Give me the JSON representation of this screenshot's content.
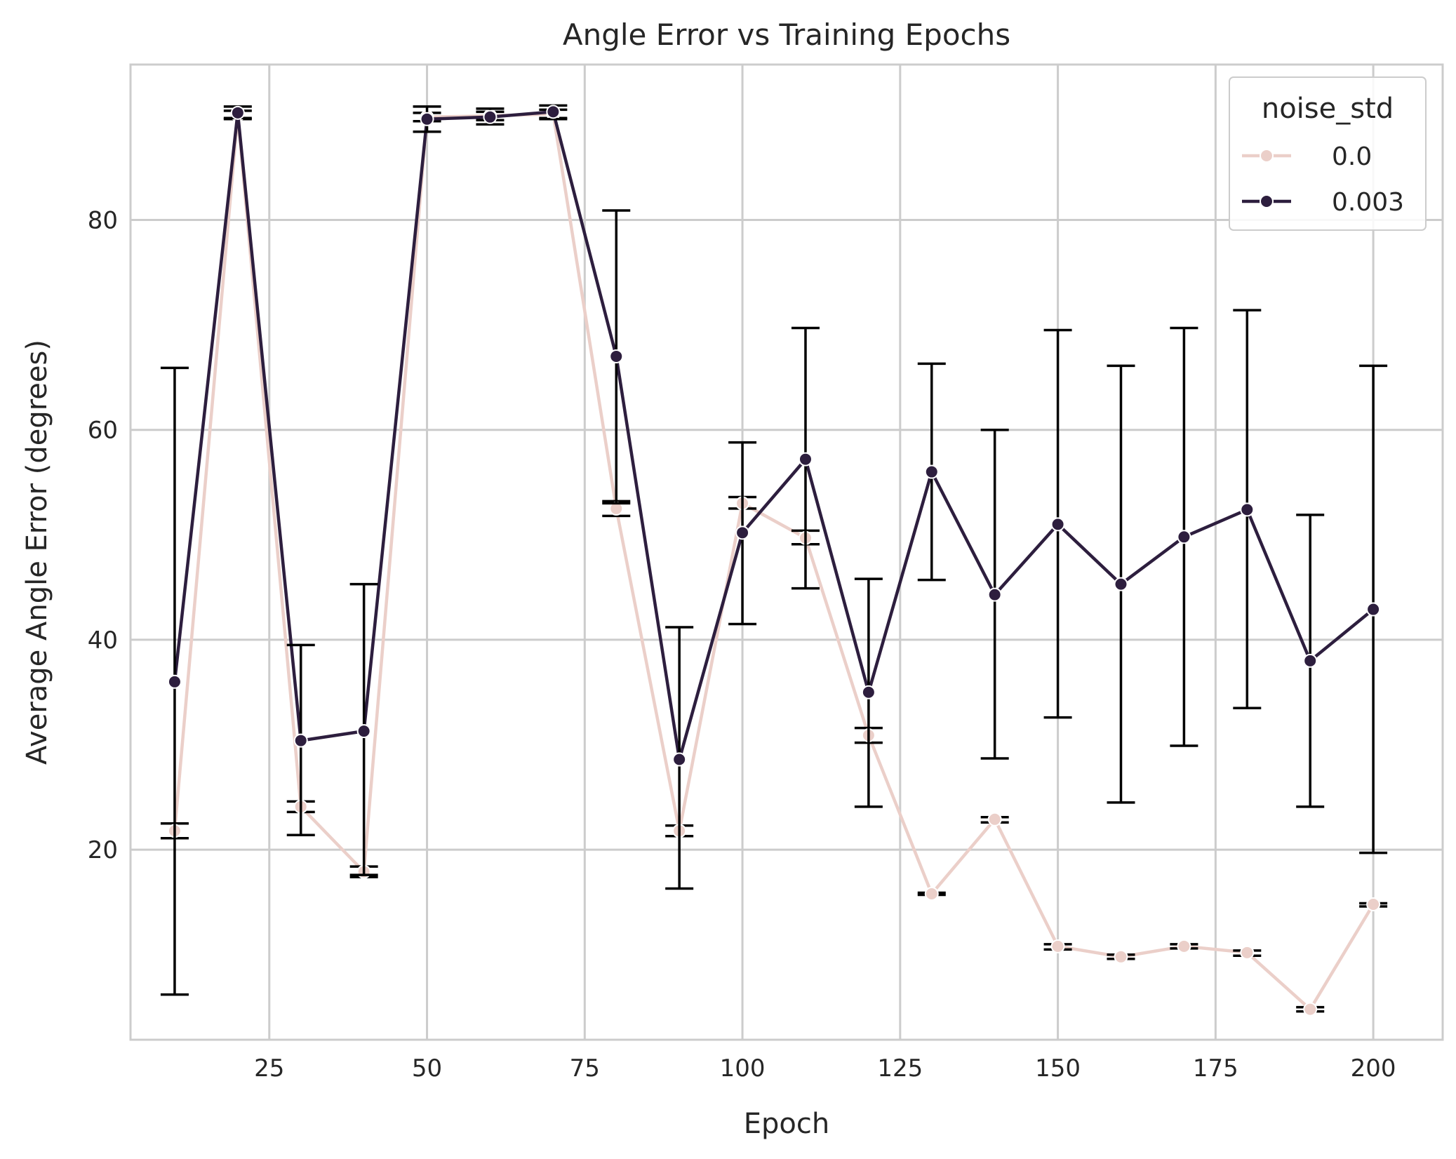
{
  "chart_data": {
    "type": "line",
    "title": "Angle Error vs Training Epochs",
    "xlabel": "Epoch",
    "ylabel": "Average Angle Error (degrees)",
    "xlim": [
      3,
      211
    ],
    "ylim": [
      1.9,
      94.8
    ],
    "xticks": [
      25,
      50,
      75,
      100,
      125,
      150,
      175,
      200
    ],
    "yticks": [
      20,
      40,
      60,
      80
    ],
    "grid": true,
    "legend": {
      "title": "noise_std",
      "placement": "top-right"
    },
    "x": [
      10,
      20,
      30,
      40,
      50,
      60,
      70,
      80,
      90,
      100,
      110,
      120,
      130,
      140,
      150,
      160,
      170,
      180,
      190,
      200
    ],
    "series": [
      {
        "name": "0.0",
        "color": "#ebcfc9",
        "values": [
          21.8,
          90.0,
          24.1,
          17.9,
          89.8,
          89.9,
          90.1,
          52.5,
          21.8,
          53.0,
          49.7,
          30.9,
          15.8,
          22.9,
          10.8,
          9.8,
          10.8,
          10.2,
          4.8,
          14.8
        ],
        "err_low": [
          21.1,
          89.6,
          23.6,
          17.4,
          89.4,
          89.5,
          89.7,
          51.8,
          21.3,
          52.5,
          49.1,
          30.2,
          15.7,
          22.6,
          10.5,
          9.6,
          10.6,
          9.9,
          4.6,
          14.6
        ],
        "err_high": [
          22.5,
          90.4,
          24.6,
          18.4,
          90.2,
          90.3,
          90.5,
          53.2,
          22.3,
          53.6,
          50.4,
          31.6,
          15.9,
          23.1,
          11.0,
          10.0,
          11.0,
          10.4,
          5.0,
          14.9
        ]
      },
      {
        "name": "0.003",
        "color": "#2d1e3e",
        "values": [
          36.0,
          90.2,
          30.4,
          31.3,
          89.6,
          89.8,
          90.3,
          67.0,
          28.6,
          50.2,
          57.2,
          35.0,
          56.0,
          44.3,
          51.0,
          45.3,
          49.8,
          52.4,
          38.0,
          42.9
        ],
        "err_low": [
          6.2,
          89.7,
          21.4,
          17.6,
          88.4,
          89.1,
          89.6,
          53.0,
          16.3,
          41.5,
          44.9,
          24.1,
          45.7,
          28.7,
          32.6,
          24.5,
          29.9,
          33.5,
          24.1,
          19.7
        ],
        "err_high": [
          65.9,
          90.8,
          39.5,
          45.3,
          90.8,
          90.6,
          90.9,
          80.9,
          41.2,
          58.8,
          69.7,
          45.8,
          66.3,
          60.0,
          69.5,
          66.1,
          69.7,
          71.4,
          51.9,
          66.1
        ]
      }
    ]
  }
}
